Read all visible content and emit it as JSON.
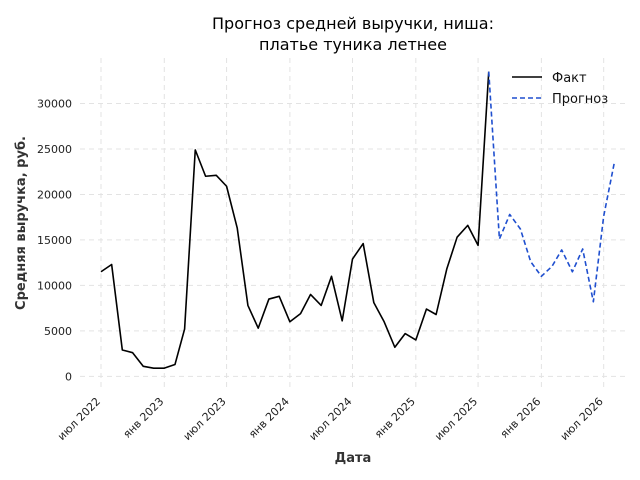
{
  "chart_data": {
    "type": "line",
    "title_lines": [
      "Прогноз средней выручки, ниша:",
      "платье туника летнее"
    ],
    "xlabel": "Дата",
    "ylabel": "Средняя выручка, руб.",
    "x_ticks": [
      {
        "date": "2022-07-01",
        "label": "июл 2022"
      },
      {
        "date": "2023-01-01",
        "label": "янв 2023"
      },
      {
        "date": "2023-07-01",
        "label": "июл 2023"
      },
      {
        "date": "2024-01-01",
        "label": "янв 2024"
      },
      {
        "date": "2024-07-01",
        "label": "июл 2024"
      },
      {
        "date": "2025-01-01",
        "label": "янв 2025"
      },
      {
        "date": "2025-07-01",
        "label": "июл 2025"
      },
      {
        "date": "2026-01-01",
        "label": "янв 2026"
      },
      {
        "date": "2026-07-01",
        "label": "июл 2026"
      }
    ],
    "y_ticks": [
      0,
      5000,
      10000,
      15000,
      20000,
      25000,
      30000
    ],
    "xlim": [
      "2022-05-01",
      "2026-09-01"
    ],
    "ylim": [
      -1500,
      35000
    ],
    "grid": true,
    "legend_position": "top-right",
    "series": [
      {
        "name": "Факт",
        "color": "#000000",
        "style": "solid",
        "x": [
          "2022-07-01",
          "2022-08-01",
          "2022-09-01",
          "2022-10-01",
          "2022-11-01",
          "2022-12-01",
          "2023-01-01",
          "2023-02-01",
          "2023-03-01",
          "2023-04-01",
          "2023-05-01",
          "2023-06-01",
          "2023-07-01",
          "2023-08-01",
          "2023-09-01",
          "2023-10-01",
          "2023-11-01",
          "2023-12-01",
          "2024-01-01",
          "2024-02-01",
          "2024-03-01",
          "2024-04-01",
          "2024-05-01",
          "2024-06-01",
          "2024-07-01",
          "2024-08-01",
          "2024-09-01",
          "2024-10-01",
          "2024-11-01",
          "2024-12-01",
          "2025-01-01",
          "2025-02-01",
          "2025-03-01",
          "2025-04-01",
          "2025-05-01",
          "2025-06-01",
          "2025-07-01",
          "2025-08-01"
        ],
        "y": [
          11500,
          12300,
          2900,
          2600,
          1100,
          900,
          900,
          1300,
          5200,
          24900,
          22000,
          22100,
          20900,
          16300,
          7800,
          5300,
          8500,
          8800,
          6000,
          6900,
          9000,
          7800,
          11000,
          6100,
          12900,
          14600,
          8100,
          6000,
          3200,
          4700,
          4000,
          7400,
          6800,
          11800,
          15300,
          16600,
          14400,
          33500
        ]
      },
      {
        "name": "Прогноз",
        "color": "#1f4fcf",
        "style": "dashed",
        "x": [
          "2025-08-01",
          "2025-09-01",
          "2025-10-01",
          "2025-11-01",
          "2025-12-01",
          "2026-01-01",
          "2026-02-01",
          "2026-03-01",
          "2026-04-01",
          "2026-05-01",
          "2026-06-01",
          "2026-07-01",
          "2026-08-01"
        ],
        "y": [
          33500,
          15100,
          17800,
          16200,
          12600,
          11000,
          12100,
          13900,
          11500,
          14000,
          8200,
          17600,
          23500
        ]
      }
    ]
  }
}
